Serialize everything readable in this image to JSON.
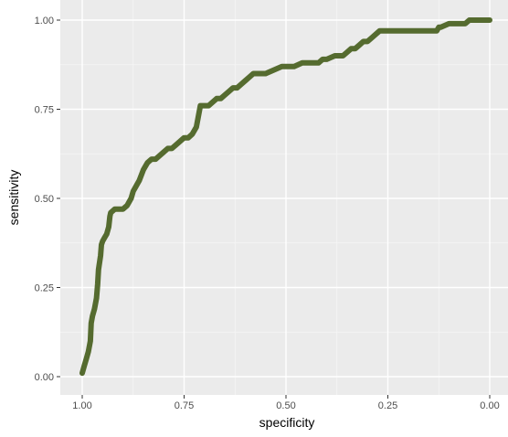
{
  "chart_data": {
    "type": "line",
    "xlabel": "specificity",
    "ylabel": "sensitivity",
    "x_reversed": true,
    "xlim": [
      1.0,
      0.0
    ],
    "ylim": [
      0.0,
      1.0
    ],
    "x_ticks": [
      "1.00",
      "0.75",
      "0.50",
      "0.25",
      "0.00"
    ],
    "y_ticks": [
      "0.00",
      "0.25",
      "0.50",
      "0.75",
      "1.00"
    ],
    "x_tick_values": [
      1.0,
      0.75,
      0.5,
      0.25,
      0.0
    ],
    "y_tick_values": [
      0.0,
      0.25,
      0.5,
      0.75,
      1.0
    ],
    "grid": true,
    "background": "#ebebeb",
    "line_color": "#556b2f",
    "series": [
      {
        "specificity": [
          1.0,
          0.995,
          0.99,
          0.985,
          0.98,
          0.978,
          0.975,
          0.97,
          0.965,
          0.962,
          0.96,
          0.955,
          0.953,
          0.95,
          0.945,
          0.94,
          0.935,
          0.932,
          0.93,
          0.92,
          0.9,
          0.89,
          0.885,
          0.88,
          0.875,
          0.87,
          0.865,
          0.86,
          0.85,
          0.84,
          0.83,
          0.82,
          0.81,
          0.8,
          0.79,
          0.78,
          0.77,
          0.76,
          0.75,
          0.74,
          0.73,
          0.72,
          0.715,
          0.71,
          0.7,
          0.69,
          0.68,
          0.67,
          0.66,
          0.65,
          0.64,
          0.63,
          0.62,
          0.61,
          0.6,
          0.59,
          0.58,
          0.57,
          0.55,
          0.53,
          0.51,
          0.5,
          0.48,
          0.46,
          0.44,
          0.42,
          0.41,
          0.4,
          0.38,
          0.36,
          0.35,
          0.34,
          0.33,
          0.32,
          0.31,
          0.3,
          0.29,
          0.28,
          0.27,
          0.25,
          0.2,
          0.15,
          0.13,
          0.125,
          0.12,
          0.1,
          0.08,
          0.06,
          0.05,
          0.04,
          0.0
        ],
        "sensitivity": [
          0.01,
          0.03,
          0.05,
          0.07,
          0.1,
          0.15,
          0.17,
          0.19,
          0.22,
          0.26,
          0.3,
          0.34,
          0.37,
          0.38,
          0.39,
          0.4,
          0.42,
          0.45,
          0.46,
          0.47,
          0.47,
          0.48,
          0.49,
          0.5,
          0.52,
          0.53,
          0.54,
          0.55,
          0.58,
          0.6,
          0.61,
          0.61,
          0.62,
          0.63,
          0.64,
          0.64,
          0.65,
          0.66,
          0.67,
          0.67,
          0.68,
          0.7,
          0.73,
          0.76,
          0.76,
          0.76,
          0.77,
          0.78,
          0.78,
          0.79,
          0.8,
          0.81,
          0.81,
          0.82,
          0.83,
          0.84,
          0.85,
          0.85,
          0.85,
          0.86,
          0.87,
          0.87,
          0.87,
          0.88,
          0.88,
          0.88,
          0.89,
          0.89,
          0.9,
          0.9,
          0.91,
          0.92,
          0.92,
          0.93,
          0.94,
          0.94,
          0.95,
          0.96,
          0.97,
          0.97,
          0.97,
          0.97,
          0.97,
          0.98,
          0.98,
          0.99,
          0.99,
          0.99,
          1.0,
          1.0,
          1.0
        ]
      }
    ]
  }
}
